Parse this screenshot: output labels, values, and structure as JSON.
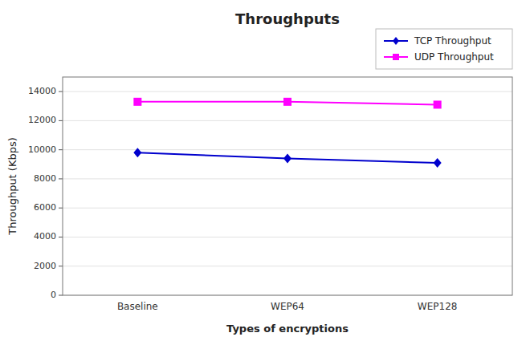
{
  "chart_data": {
    "type": "line",
    "title": "Throughputs",
    "xlabel": "Types of encryptions",
    "ylabel": "Throughput (Kbps)",
    "categories": [
      "Baseline",
      "WEP64",
      "WEP128"
    ],
    "series": [
      {
        "name": "TCP Throughput",
        "color": "#0000CD",
        "marker": "diamond",
        "values": [
          9800,
          9400,
          9100
        ]
      },
      {
        "name": "UDP Throughput",
        "color": "#FF00FF",
        "marker": "square",
        "values": [
          13300,
          13300,
          13100
        ]
      }
    ],
    "ylim": [
      0,
      15000
    ],
    "yticks": [
      0,
      2000,
      4000,
      6000,
      8000,
      10000,
      12000,
      14000
    ],
    "grid": true,
    "legend": "upper right"
  }
}
